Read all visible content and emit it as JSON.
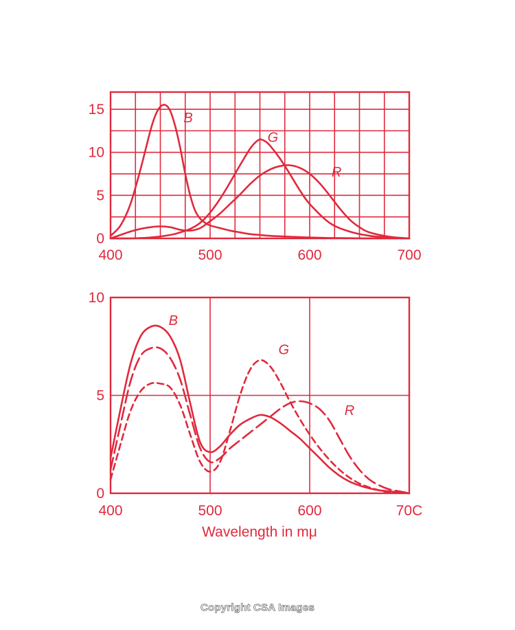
{
  "theme": {
    "color": "#e0293c",
    "background": "#ffffff"
  },
  "credit": "Copyright CSA Images",
  "chart_data": [
    {
      "type": "line",
      "xlabel": "",
      "ylabel": "",
      "xlim": [
        400,
        700
      ],
      "ylim": [
        0,
        17
      ],
      "x_ticks": [
        "400",
        "500",
        "600",
        "700"
      ],
      "y_ticks": [
        "15",
        "10",
        "5",
        "0"
      ],
      "grid": true,
      "series": [
        {
          "name": "B",
          "style": "solid",
          "x": [
            400,
            410,
            420,
            430,
            440,
            445,
            450,
            455,
            460,
            465,
            470,
            475,
            480,
            485,
            490,
            495,
            500,
            510,
            520,
            530,
            540,
            550,
            560,
            580,
            600,
            620,
            640,
            660,
            680,
            700
          ],
          "y": [
            0.3,
            1.5,
            4.0,
            8.0,
            12.5,
            14.3,
            15.3,
            15.5,
            14.8,
            13.0,
            10.5,
            7.5,
            5.0,
            3.2,
            2.3,
            1.8,
            1.5,
            1.2,
            0.9,
            0.7,
            0.5,
            0.4,
            0.3,
            0.2,
            0.1,
            0.05,
            0.02,
            0.0,
            0.0,
            0.0
          ]
        },
        {
          "name": "G",
          "style": "solid",
          "x": [
            400,
            420,
            440,
            460,
            470,
            480,
            490,
            500,
            510,
            520,
            530,
            540,
            545,
            550,
            555,
            560,
            570,
            580,
            590,
            600,
            620,
            640,
            660,
            680,
            700
          ],
          "y": [
            0.0,
            0.0,
            0.1,
            0.4,
            0.7,
            1.1,
            1.8,
            3.0,
            4.6,
            6.5,
            8.5,
            10.4,
            11.1,
            11.5,
            11.3,
            10.8,
            9.3,
            7.5,
            5.6,
            4.0,
            1.8,
            0.8,
            0.3,
            0.1,
            0.0
          ]
        },
        {
          "name": "R",
          "style": "solid",
          "x": [
            400,
            410,
            420,
            430,
            440,
            450,
            460,
            470,
            480,
            490,
            500,
            510,
            520,
            530,
            540,
            550,
            560,
            570,
            580,
            590,
            600,
            610,
            620,
            630,
            640,
            650,
            660,
            680,
            700
          ],
          "y": [
            0.0,
            0.4,
            0.8,
            1.1,
            1.3,
            1.4,
            1.3,
            1.0,
            0.9,
            1.2,
            2.0,
            2.9,
            4.0,
            5.1,
            6.3,
            7.3,
            8.0,
            8.4,
            8.5,
            8.2,
            7.5,
            6.4,
            5.0,
            3.5,
            2.2,
            1.3,
            0.7,
            0.2,
            0.0
          ]
        }
      ]
    },
    {
      "type": "line",
      "xlabel": "Wavelength in mμ",
      "ylabel": "",
      "xlim": [
        400,
        700
      ],
      "ylim": [
        0,
        10
      ],
      "x_ticks": [
        "400",
        "500",
        "600",
        "70C"
      ],
      "y_ticks": [
        "10",
        "5",
        "0"
      ],
      "grid": true,
      "series": [
        {
          "name": "B",
          "style": "solid",
          "x": [
            400,
            410,
            420,
            430,
            440,
            450,
            460,
            470,
            480,
            490,
            500,
            510,
            520,
            530,
            540,
            550,
            560,
            570,
            580,
            590,
            600,
            610,
            620,
            630,
            640,
            650,
            660,
            670,
            680,
            690,
            700
          ],
          "y": [
            1.8,
            4.3,
            6.6,
            8.0,
            8.5,
            8.5,
            8.0,
            6.8,
            4.6,
            2.6,
            2.1,
            2.4,
            3.0,
            3.5,
            3.8,
            4.0,
            3.9,
            3.6,
            3.2,
            2.8,
            2.3,
            1.8,
            1.3,
            0.9,
            0.6,
            0.4,
            0.25,
            0.15,
            0.1,
            0.05,
            0.0
          ]
        },
        {
          "name": "",
          "style": "long-dash",
          "x": [
            400,
            410,
            420,
            430,
            440,
            450,
            460,
            470,
            480,
            490,
            500,
            510,
            520,
            530,
            540,
            550,
            560,
            570,
            580,
            590,
            600,
            610,
            620,
            630,
            640,
            650,
            660,
            670,
            680,
            690,
            700
          ],
          "y": [
            1.2,
            3.5,
            5.7,
            7.0,
            7.4,
            7.4,
            6.9,
            5.8,
            4.0,
            2.3,
            1.6,
            1.8,
            2.3,
            2.7,
            3.1,
            3.5,
            3.9,
            4.3,
            4.6,
            4.7,
            4.6,
            4.3,
            3.7,
            2.8,
            1.9,
            1.2,
            0.7,
            0.4,
            0.2,
            0.1,
            0.0
          ]
        },
        {
          "name": "G",
          "style": "short-dash",
          "x": [
            400,
            410,
            420,
            430,
            440,
            450,
            460,
            470,
            480,
            490,
            500,
            510,
            520,
            530,
            540,
            550,
            560,
            570,
            580,
            590,
            600,
            610,
            620,
            630,
            640,
            650,
            660,
            670,
            680,
            690,
            700
          ],
          "y": [
            0.7,
            2.5,
            4.2,
            5.2,
            5.6,
            5.6,
            5.4,
            4.5,
            3.0,
            1.6,
            1.1,
            1.6,
            3.2,
            5.0,
            6.3,
            6.8,
            6.5,
            5.7,
            4.7,
            3.8,
            3.0,
            2.3,
            1.7,
            1.2,
            0.8,
            0.5,
            0.3,
            0.15,
            0.05,
            0.02,
            0.0
          ]
        }
      ],
      "annotations": [
        {
          "text": "B",
          "x": 463,
          "y": 8.6
        },
        {
          "text": "G",
          "x": 574,
          "y": 7.1
        },
        {
          "text": "R",
          "x": 640,
          "y": 4.0
        }
      ]
    }
  ],
  "top_annotations": [
    {
      "text": "B",
      "x": 478,
      "y": 13.5
    },
    {
      "text": "G",
      "x": 563,
      "y": 11.2
    },
    {
      "text": "R",
      "x": 627,
      "y": 7.2
    }
  ]
}
